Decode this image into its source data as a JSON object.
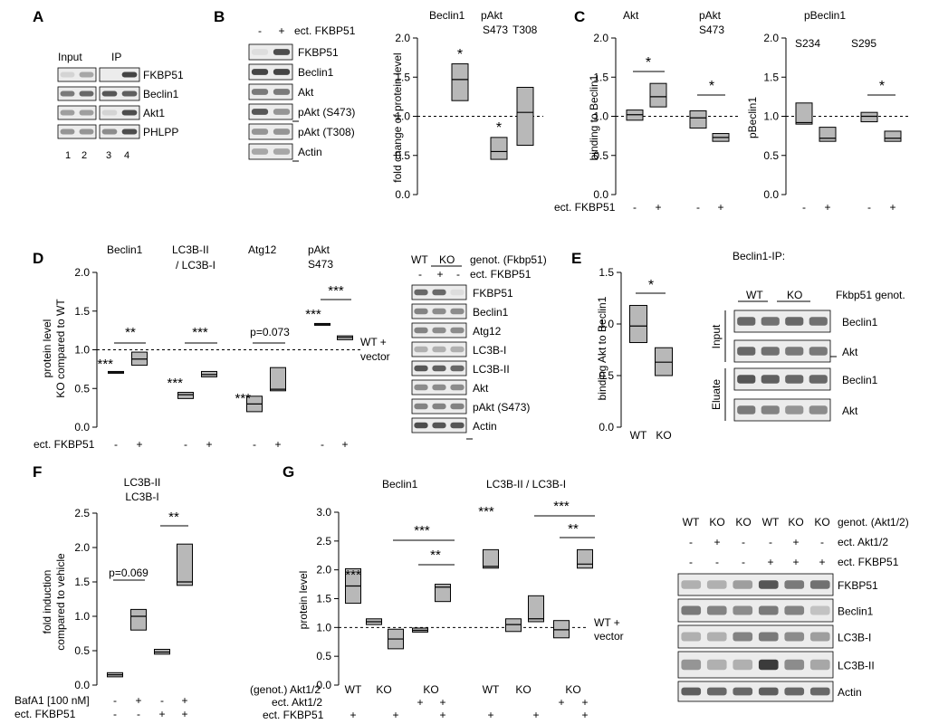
{
  "panels": {
    "A": {
      "letter": "A",
      "headers": [
        "Input",
        "IP"
      ],
      "rows": [
        "FKBP51",
        "Beclin1",
        "Akt1",
        "PHLPP"
      ],
      "lanes": [
        "1",
        "2",
        "3",
        "4"
      ]
    },
    "B": {
      "letter": "B",
      "treatment": "ect. FKBP51",
      "signs": [
        "-",
        "+"
      ],
      "blot_labels": [
        "FKBP51",
        "Beclin1",
        "Akt",
        "pAkt (S473)",
        "pAkt (T308)",
        "Actin"
      ],
      "chart_titles": [
        "Beclin1",
        "pAkt",
        "S473",
        "T308"
      ],
      "ylabel": "fold change of protein level",
      "yticks": [
        "0.0",
        "0.5",
        "1.0",
        "1.5",
        "2.0"
      ],
      "stars": [
        "*",
        "*"
      ]
    },
    "C": {
      "letter": "C",
      "titles": [
        "Akt",
        "pAkt",
        "S473",
        "pBeclin1",
        "S234",
        "S295"
      ],
      "ylabel_left": "binding to Beclin1",
      "ylabel_right": "pBeclin1",
      "yticks": [
        "0.0",
        "0.5",
        "1.0",
        "1.5",
        "2.0"
      ],
      "xlabel": "ect. FKBP51",
      "signs": [
        "-",
        "+"
      ],
      "stars": [
        "*",
        "*",
        "*"
      ]
    },
    "D": {
      "letter": "D",
      "titles": [
        "Beclin1",
        "LC3B-II",
        "/ LC3B-I",
        "Atg12",
        "pAkt",
        "S473"
      ],
      "ylabel": "protein level",
      "ylabel2": "KO compared to WT",
      "yticks": [
        "0.0",
        "0.5",
        "1.0",
        "1.5",
        "2.0"
      ],
      "xlabel": "ect. FKBP51",
      "signs": [
        "-",
        "+"
      ],
      "annotations": [
        "**",
        "***",
        "p=0.073",
        "***",
        "***",
        "***",
        "***",
        "***"
      ],
      "ref_label": [
        "WT +",
        "vector"
      ],
      "blot_header": [
        "WT",
        "KO"
      ],
      "blot_header_label": "genot. (Fkbp51)",
      "blot_treatment_label": "ect. FKBP51",
      "blot_signs": [
        "-",
        "+",
        "-"
      ],
      "blot_labels": [
        "FKBP51",
        "Beclin1",
        "Atg12",
        "LC3B-I",
        "LC3B-II",
        "Akt",
        "pAkt (S473)",
        "Actin"
      ]
    },
    "E": {
      "letter": "E",
      "ylabel": "binding Akt to Beclin1",
      "yticks": [
        "0.0",
        "0.5",
        "1.0",
        "1.5"
      ],
      "categories": [
        "WT",
        "KO"
      ],
      "star": "*",
      "ip_title": "Beclin1-IP:",
      "blot_header": [
        "WT",
        "KO"
      ],
      "blot_header_label": "Fkbp51 genot.",
      "side_labels": [
        "Input",
        "Eluate"
      ],
      "blot_labels": [
        "Beclin1",
        "Akt",
        "Beclin1",
        "Akt"
      ]
    },
    "F": {
      "letter": "F",
      "title": [
        "LC3B-II",
        "LC3B-I"
      ],
      "ylabel": "fold induction",
      "ylabel2": "compared to vehicle",
      "yticks": [
        "0.0",
        "0.5",
        "1.0",
        "1.5",
        "2.0",
        "2.5"
      ],
      "row_labels": [
        "BafA1 [100 nM]",
        "ect. FKBP51"
      ],
      "row1_signs": [
        "-",
        "+",
        "-",
        "+"
      ],
      "row2_signs": [
        "-",
        "-",
        "+",
        "+"
      ],
      "annotations": [
        "p=0.069",
        "**"
      ]
    },
    "G": {
      "letter": "G",
      "titles": [
        "Beclin1",
        "LC3B-II / LC3B-I"
      ],
      "ylabel": "protein level",
      "yticks": [
        "0.0",
        "0.5",
        "1.0",
        "1.5",
        "2.0",
        "2.5",
        "3.0"
      ],
      "row_labels": [
        "(genot.) Akt1/2",
        "ect. Akt1/2",
        "ect. FKBP51"
      ],
      "genot": [
        "WT",
        "KO",
        "KO",
        "WT",
        "KO",
        "KO"
      ],
      "akt_signs": [
        "+",
        "+",
        "+",
        "+"
      ],
      "fkbp_signs": [
        "+",
        "+",
        "+",
        "+",
        "+",
        "+"
      ],
      "annotations": [
        "***",
        "***",
        "**",
        "***",
        "***",
        "**"
      ],
      "ref_label": [
        "WT +",
        "vector"
      ],
      "blot_genot": [
        "WT",
        "KO",
        "KO",
        "WT",
        "KO",
        "KO"
      ],
      "blot_genot_label": "genot. (Akt1/2)",
      "blot_akt_label": "ect. Akt1/2",
      "blot_fkbp_label": "ect. FKBP51",
      "blot_akt_signs": [
        "-",
        "+",
        "-",
        "-",
        "+",
        "-"
      ],
      "blot_fkbp_signs": [
        "-",
        "-",
        "-",
        "+",
        "+",
        "+"
      ],
      "blot_labels": [
        "FKBP51",
        "Beclin1",
        "LC3B-I",
        "LC3B-II",
        "Actin"
      ]
    }
  },
  "chart_data": [
    {
      "type": "box",
      "panel": "B",
      "title": "",
      "categories": [
        "Beclin1",
        "pAkt S473",
        "pAkt T308"
      ],
      "ylim": [
        0,
        2
      ],
      "boxes": [
        {
          "category": "Beclin1",
          "low": 1.2,
          "median": 1.47,
          "high": 1.67
        },
        {
          "category": "pAkt S473",
          "low": 0.45,
          "median": 0.55,
          "high": 0.73
        },
        {
          "category": "pAkt T308",
          "low": 0.63,
          "median": 1.05,
          "high": 1.37
        }
      ],
      "reference_line": 1.0
    },
    {
      "type": "box",
      "panel": "C",
      "ylim": [
        0,
        2
      ],
      "boxes": [
        {
          "category": "Akt -",
          "low": 0.95,
          "median": 1.02,
          "high": 1.08
        },
        {
          "category": "Akt +",
          "low": 1.12,
          "median": 1.25,
          "high": 1.42
        },
        {
          "category": "pAkt S473 -",
          "low": 0.85,
          "median": 0.98,
          "high": 1.07
        },
        {
          "category": "pAkt S473 +",
          "low": 0.68,
          "median": 0.73,
          "high": 0.78
        },
        {
          "category": "pBeclin1 S234 -",
          "low": 0.9,
          "median": 0.92,
          "high": 1.17
        },
        {
          "category": "pBeclin1 S234 +",
          "low": 0.68,
          "median": 0.72,
          "high": 0.86
        },
        {
          "category": "pBeclin1 S295 -",
          "low": 0.93,
          "median": 1.0,
          "high": 1.05
        },
        {
          "category": "pBeclin1 S295 +",
          "low": 0.68,
          "median": 0.72,
          "high": 0.81
        }
      ],
      "reference_line": 1.0
    },
    {
      "type": "box",
      "panel": "D",
      "ylim": [
        0,
        2
      ],
      "boxes": [
        {
          "category": "Beclin1 -",
          "low": 0.7,
          "median": 0.71,
          "high": 0.72
        },
        {
          "category": "Beclin1 +",
          "low": 0.8,
          "median": 0.88,
          "high": 0.97
        },
        {
          "category": "LC3B-II/LC3B-I -",
          "low": 0.37,
          "median": 0.42,
          "high": 0.45
        },
        {
          "category": "LC3B-II/LC3B-I +",
          "low": 0.65,
          "median": 0.68,
          "high": 0.72
        },
        {
          "category": "Atg12 -",
          "low": 0.2,
          "median": 0.3,
          "high": 0.4
        },
        {
          "category": "Atg12 +",
          "low": 0.47,
          "median": 0.49,
          "high": 0.77
        },
        {
          "category": "pAkt S473 -",
          "low": 1.32,
          "median": 1.33,
          "high": 1.34
        },
        {
          "category": "pAkt S473 +",
          "low": 1.13,
          "median": 1.16,
          "high": 1.18
        }
      ],
      "reference_line": 1.0
    },
    {
      "type": "box",
      "panel": "E",
      "ylim": [
        0,
        1.5
      ],
      "boxes": [
        {
          "category": "WT",
          "low": 0.82,
          "median": 0.98,
          "high": 1.18
        },
        {
          "category": "KO",
          "low": 0.5,
          "median": 0.63,
          "high": 0.77
        }
      ]
    },
    {
      "type": "box",
      "panel": "F",
      "ylim": [
        0,
        2.5
      ],
      "boxes": [
        {
          "category": "- / -",
          "low": 0.12,
          "median": 0.15,
          "high": 0.18
        },
        {
          "category": "+ / -",
          "low": 0.8,
          "median": 1.0,
          "high": 1.1
        },
        {
          "category": "- / +",
          "low": 0.45,
          "median": 0.48,
          "high": 0.52
        },
        {
          "category": "+ / +",
          "low": 1.45,
          "median": 1.5,
          "high": 2.05
        }
      ]
    },
    {
      "type": "box",
      "panel": "G",
      "ylim": [
        0,
        3
      ],
      "boxes": [
        {
          "category": "Beclin1 WT",
          "low": 1.42,
          "median": 1.72,
          "high": 2.02
        },
        {
          "category": "Beclin1 KO",
          "low": 1.05,
          "median": 1.1,
          "high": 1.15
        },
        {
          "category": "Beclin1 KO +FKBP51",
          "low": 0.63,
          "median": 0.8,
          "high": 0.97
        },
        {
          "category": "Beclin1 KO +Akt",
          "low": 0.92,
          "median": 0.95,
          "high": 0.99
        },
        {
          "category": "Beclin1 KO +Akt +FKBP51",
          "low": 1.45,
          "median": 1.7,
          "high": 1.75
        },
        {
          "category": "LC3 WT",
          "low": 2.03,
          "median": 2.06,
          "high": 2.35
        },
        {
          "category": "LC3 KO",
          "low": 0.93,
          "median": 1.05,
          "high": 1.15
        },
        {
          "category": "LC3 KO +FKBP51",
          "low": 1.1,
          "median": 1.15,
          "high": 1.55
        },
        {
          "category": "LC3 KO +Akt",
          "low": 0.82,
          "median": 0.96,
          "high": 1.12
        },
        {
          "category": "LC3 KO +Akt +FKBP51",
          "low": 2.03,
          "median": 2.1,
          "high": 2.35
        }
      ],
      "reference_line": 1.0
    }
  ]
}
